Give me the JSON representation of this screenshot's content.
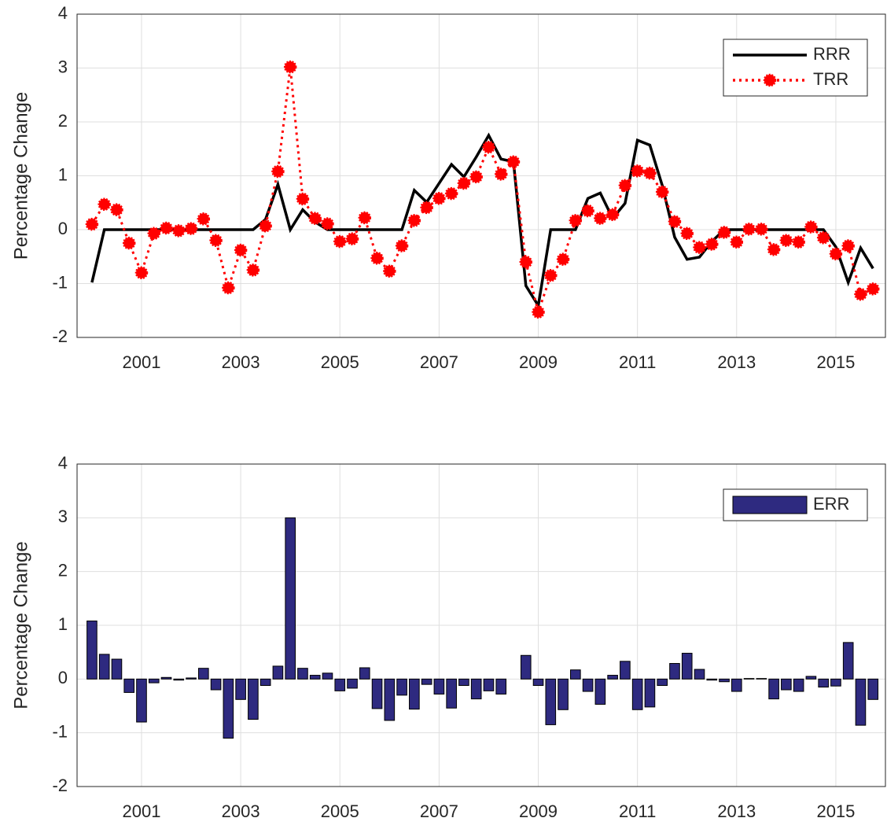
{
  "chart_data": [
    {
      "type": "line",
      "ylabel": "Percentage Change",
      "grid": true,
      "legend": "northeast",
      "x": [
        2000,
        2000.25,
        2000.5,
        2000.75,
        2001,
        2001.25,
        2001.5,
        2001.75,
        2002,
        2002.25,
        2002.5,
        2002.75,
        2003,
        2003.25,
        2003.5,
        2003.75,
        2004,
        2004.25,
        2004.5,
        2004.75,
        2005,
        2005.25,
        2005.5,
        2005.75,
        2006,
        2006.25,
        2006.5,
        2006.75,
        2007,
        2007.25,
        2007.5,
        2007.75,
        2008,
        2008.25,
        2008.5,
        2008.75,
        2009,
        2009.25,
        2009.5,
        2009.75,
        2010,
        2010.25,
        2010.5,
        2010.75,
        2011,
        2011.25,
        2011.5,
        2011.75,
        2012,
        2012.25,
        2012.5,
        2012.75,
        2013,
        2013.25,
        2013.5,
        2013.75,
        2014,
        2014.25,
        2014.5,
        2014.75,
        2015,
        2015.25,
        2015.5,
        2015.75
      ],
      "xlim": [
        1999.7,
        2016
      ],
      "xticks": [
        2001,
        2003,
        2005,
        2007,
        2009,
        2011,
        2013,
        2015
      ],
      "ylim": [
        -2,
        4
      ],
      "yticks": [
        -2,
        -1,
        0,
        1,
        2,
        3,
        4
      ],
      "series": [
        {
          "name": "RRR",
          "color": "#000000",
          "linestyle": "solid",
          "marker": "none",
          "values": [
            -0.98,
            0,
            0,
            0,
            0,
            0,
            0,
            0,
            0,
            0,
            0,
            0,
            0,
            0,
            0.19,
            0.84,
            0,
            0.37,
            0.14,
            0,
            0,
            0,
            0,
            0,
            0,
            0,
            0.73,
            0.51,
            0.86,
            1.21,
            0.98,
            1.35,
            1.75,
            1.31,
            1.26,
            -1.04,
            -1.41,
            0,
            0,
            0,
            0.58,
            0.68,
            0.21,
            0.49,
            1.66,
            1.57,
            0.82,
            -0.14,
            -0.55,
            -0.51,
            -0.22,
            0,
            0,
            0,
            0,
            0,
            0,
            0,
            0,
            0,
            -0.32,
            -0.98,
            -0.34,
            -0.72
          ]
        },
        {
          "name": "TRR",
          "color": "#ff0000",
          "linestyle": "dotted",
          "marker": "circle",
          "values": [
            0.1,
            0.47,
            0.37,
            -0.25,
            -0.8,
            -0.07,
            0.03,
            -0.02,
            0.02,
            0.2,
            -0.2,
            -1.08,
            -0.38,
            -0.75,
            0.07,
            1.08,
            3.02,
            0.57,
            0.21,
            0.11,
            -0.22,
            -0.17,
            0.22,
            -0.53,
            -0.77,
            -0.3,
            0.17,
            0.41,
            0.58,
            0.67,
            0.86,
            0.98,
            1.53,
            1.03,
            1.26,
            -0.6,
            -1.53,
            -0.85,
            -0.55,
            0.17,
            0.35,
            0.21,
            0.28,
            0.82,
            1.09,
            1.05,
            0.7,
            0.15,
            -0.07,
            -0.33,
            -0.27,
            -0.05,
            -0.23,
            0.01,
            0.01,
            -0.37,
            -0.2,
            -0.23,
            0.05,
            -0.15,
            -0.45,
            -0.3,
            -1.2,
            -1.1
          ]
        }
      ]
    },
    {
      "type": "bar",
      "ylabel": "Percentage Change",
      "grid": true,
      "legend": "northeast",
      "x": [
        2000,
        2000.25,
        2000.5,
        2000.75,
        2001,
        2001.25,
        2001.5,
        2001.75,
        2002,
        2002.25,
        2002.5,
        2002.75,
        2003,
        2003.25,
        2003.5,
        2003.75,
        2004,
        2004.25,
        2004.5,
        2004.75,
        2005,
        2005.25,
        2005.5,
        2005.75,
        2006,
        2006.25,
        2006.5,
        2006.75,
        2007,
        2007.25,
        2007.5,
        2007.75,
        2008,
        2008.25,
        2008.5,
        2008.75,
        2009,
        2009.25,
        2009.5,
        2009.75,
        2010,
        2010.25,
        2010.5,
        2010.75,
        2011,
        2011.25,
        2011.5,
        2011.75,
        2012,
        2012.25,
        2012.5,
        2012.75,
        2013,
        2013.25,
        2013.5,
        2013.75,
        2014,
        2014.25,
        2014.5,
        2014.75,
        2015,
        2015.25,
        2015.5,
        2015.75
      ],
      "xlim": [
        1999.7,
        2016
      ],
      "xticks": [
        2001,
        2003,
        2005,
        2007,
        2009,
        2011,
        2013,
        2015
      ],
      "ylim": [
        -2,
        4
      ],
      "yticks": [
        -2,
        -1,
        0,
        1,
        2,
        3,
        4
      ],
      "series": [
        {
          "name": "ERR",
          "color": "#2e2a80",
          "values": [
            1.08,
            0.46,
            0.37,
            -0.25,
            -0.8,
            -0.07,
            0.03,
            -0.02,
            0.02,
            0.2,
            -0.2,
            -1.1,
            -0.38,
            -0.75,
            -0.12,
            0.24,
            3.0,
            0.2,
            0.07,
            0.11,
            -0.22,
            -0.17,
            0.21,
            -0.55,
            -0.77,
            -0.3,
            -0.56,
            -0.1,
            -0.28,
            -0.54,
            -0.12,
            -0.37,
            -0.22,
            -0.28,
            0,
            0.44,
            -0.12,
            -0.85,
            -0.57,
            0.17,
            -0.23,
            -0.47,
            0.07,
            0.33,
            -0.57,
            -0.52,
            -0.12,
            0.29,
            0.48,
            0.18,
            -0.02,
            -0.05,
            -0.23,
            0.01,
            0.01,
            -0.37,
            -0.2,
            -0.23,
            0.05,
            -0.15,
            -0.13,
            0.68,
            -0.86,
            -0.38
          ]
        }
      ]
    }
  ]
}
